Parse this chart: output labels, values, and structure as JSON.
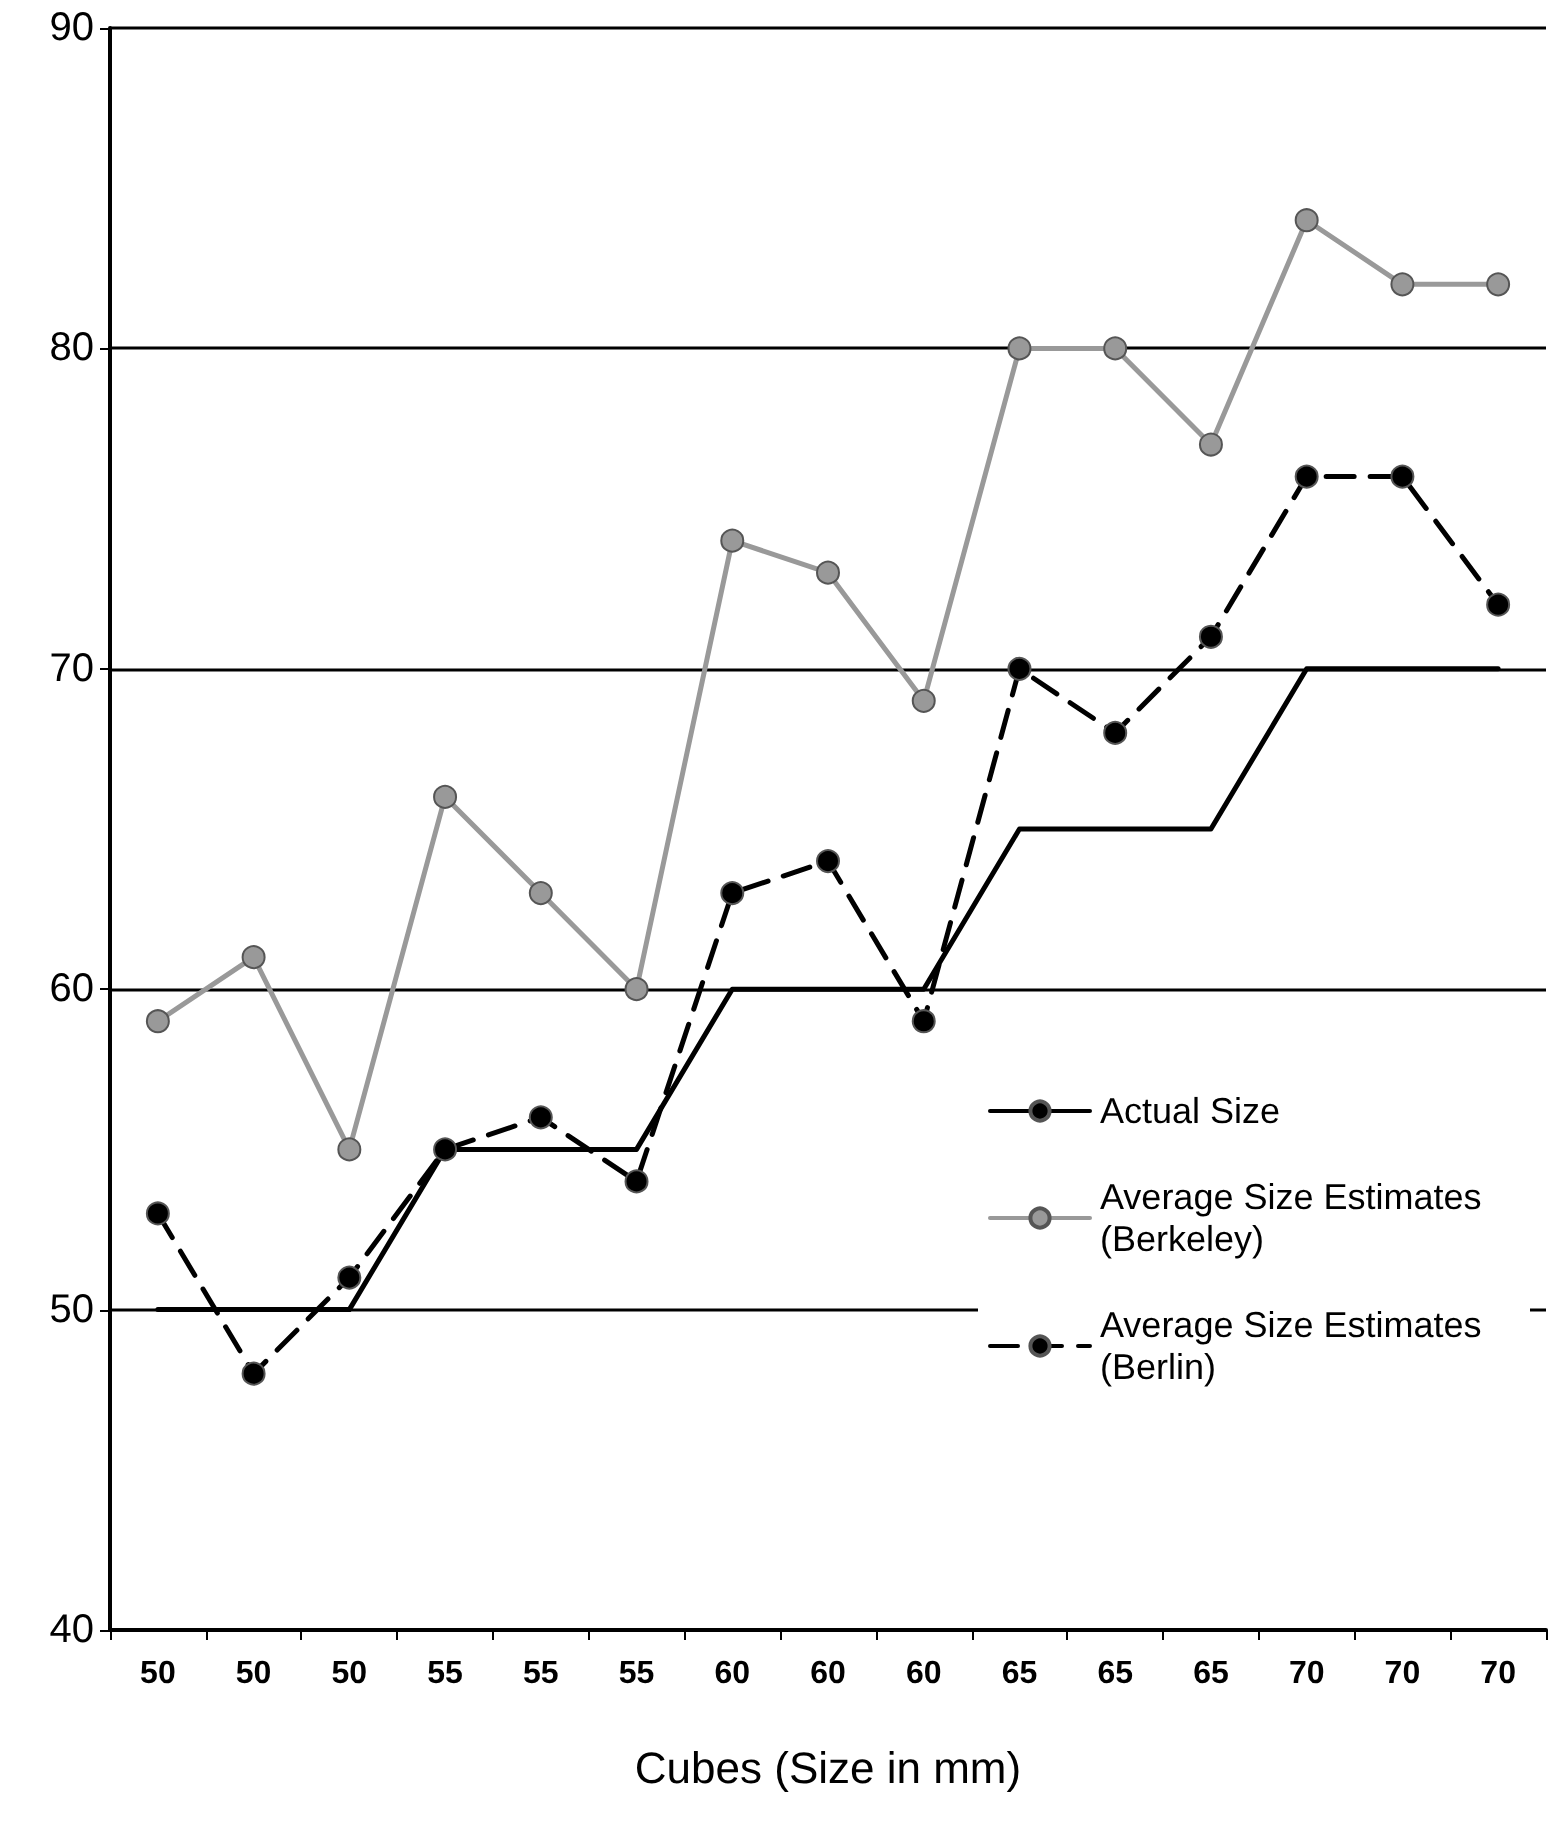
{
  "chart_data": {
    "type": "line",
    "xlabel": "Cubes (Size in mm)",
    "categories": [
      "50",
      "50",
      "50",
      "55",
      "55",
      "55",
      "60",
      "60",
      "60",
      "65",
      "65",
      "65",
      "70",
      "70",
      "70"
    ],
    "ylim": [
      40,
      90
    ],
    "yticks": [
      40,
      50,
      60,
      70,
      80,
      90
    ],
    "grid": "y",
    "legend": "right",
    "series": [
      {
        "name": "Actual Size",
        "color": "#000000",
        "marker": "none",
        "line_style": "solid",
        "values": [
          50,
          50,
          50,
          55,
          55,
          55,
          60,
          60,
          60,
          65,
          65,
          65,
          70,
          70,
          70
        ]
      },
      {
        "name": "Average Size Estimates (Berkeley)",
        "color": "#999999",
        "marker": "circle",
        "line_style": "solid",
        "values": [
          59,
          61,
          55,
          66,
          63,
          60,
          74,
          73,
          69,
          80,
          80,
          77,
          84,
          82,
          82
        ]
      },
      {
        "name": "Average Size Estimates (Berlin)",
        "color": "#000000",
        "marker": "circle",
        "line_style": "dashed",
        "values": [
          53,
          48,
          51,
          55,
          56,
          54,
          63,
          64,
          59,
          70,
          68,
          71,
          76,
          76,
          72
        ]
      }
    ]
  }
}
